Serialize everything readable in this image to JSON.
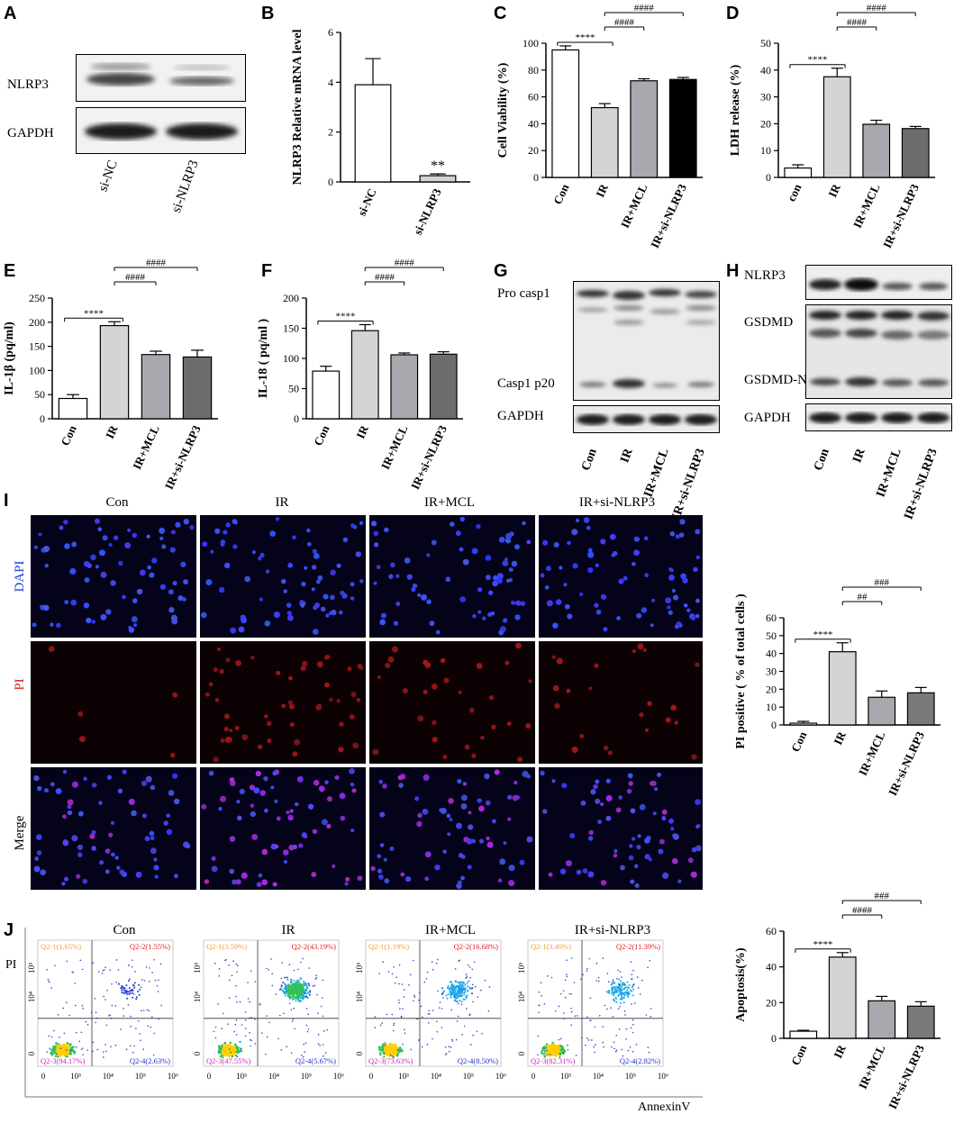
{
  "panels": {
    "A": {
      "label": "A",
      "rows": [
        "NLRP3",
        "GAPDH"
      ],
      "lanes": [
        "si-NC",
        "si-NLRP3"
      ]
    },
    "G": {
      "label": "G",
      "rows": [
        "Pro casp1",
        "Casp1 p20",
        "GAPDH"
      ],
      "lanes": [
        "Con",
        "IR",
        "IR+MCL",
        "IR+si-NLRP3"
      ]
    },
    "H": {
      "label": "H",
      "rows": [
        "NLRP3",
        "GSDMD",
        "GSDMD-N",
        "GAPDH"
      ],
      "lanes": [
        "Con",
        "IR",
        "IR+MCL",
        "IR+si-NLRP3"
      ]
    },
    "I": {
      "label": "I",
      "columns": [
        "Con",
        "IR",
        "IR+MCL",
        "IR+si-NLRP3"
      ],
      "rows": [
        "DAPI",
        "PI",
        "Merge"
      ],
      "row_colors": [
        "#1f3fd6",
        "#d42020",
        "#000000"
      ]
    },
    "J": {
      "label": "J",
      "columns": [
        "Con",
        "IR",
        "IR+MCL",
        "IR+si-NLRP3"
      ],
      "y_axis": "PI",
      "x_axis": "AnnexinV",
      "ticks": [
        "0",
        "10³",
        "10⁴",
        "10⁵",
        "10⁶"
      ],
      "quadrants": [
        [
          "Q2-1(1.65%)",
          "Q2-2(1.55%)",
          "Q2-3(94.17%)",
          "Q2-4(2.63%)"
        ],
        [
          "Q2-1(3.59%)",
          "Q2-2(43.19%)",
          "Q2-3(47.55%)",
          "Q2-4(5.67%)"
        ],
        [
          "Q2-1(1.19%)",
          "Q2-2(16.68%)",
          "Q2-3(73.63%)",
          "Q2-4(8.50%)"
        ],
        [
          "Q2-1(3.49%)",
          "Q2-2(11.39%)",
          "Q2-3(82.31%)",
          "Q2-4(2.82%)"
        ]
      ]
    }
  },
  "chart_data": [
    {
      "id": "B",
      "type": "bar",
      "label": "B",
      "categories": [
        "si-NC",
        "si-NLRP3"
      ],
      "values": [
        3.9,
        0.25
      ],
      "errors": [
        1.05,
        0.07
      ],
      "ylabel": "NLRP3 Relative mRNA level",
      "ylim": [
        0,
        6
      ],
      "yticks": [
        "0",
        "2",
        "4",
        "6"
      ],
      "fills": [
        "#ffffff",
        "#d4d4d4"
      ],
      "annotations": [
        {
          "text": "**",
          "at": 1
        }
      ]
    },
    {
      "id": "C",
      "type": "bar",
      "label": "C",
      "categories": [
        "Con",
        "IR",
        "IR+MCL",
        "IR+si-NLRP3"
      ],
      "values": [
        95,
        52,
        72,
        73
      ],
      "errors": [
        3,
        3,
        1.5,
        1.5
      ],
      "ylabel": "Cell  Viability (%)",
      "ylim": [
        0,
        100
      ],
      "yticks": [
        "0",
        "20",
        "40",
        "60",
        "80",
        "100"
      ],
      "fills": [
        "#ffffff",
        "#d4d4d4",
        "#a8a8ae",
        "#000000"
      ],
      "brackets": [
        {
          "from": 0,
          "to": 1,
          "text": "****"
        },
        {
          "from": 1,
          "to": 2,
          "text": "####"
        },
        {
          "from": 1,
          "to": 3,
          "text": "####"
        }
      ]
    },
    {
      "id": "D",
      "type": "bar",
      "label": "D",
      "categories": [
        "con",
        "IR",
        "IR+MCL",
        "IR+si-NLRP3"
      ],
      "values": [
        3.5,
        37.5,
        19.8,
        18.2
      ],
      "errors": [
        1.2,
        3.2,
        1.5,
        0.8
      ],
      "ylabel": "LDH release (%)",
      "ylim": [
        0,
        50
      ],
      "yticks": [
        "0",
        "10",
        "20",
        "30",
        "40",
        "50"
      ],
      "fills": [
        "#ffffff",
        "#d4d4d4",
        "#a8a8ae",
        "#6c6c6c"
      ],
      "brackets": [
        {
          "from": 0,
          "to": 1,
          "text": "****"
        },
        {
          "from": 1,
          "to": 2,
          "text": "####"
        },
        {
          "from": 1,
          "to": 3,
          "text": "####"
        }
      ]
    },
    {
      "id": "E",
      "type": "bar",
      "label": "E",
      "categories": [
        "Con",
        "IR",
        "IR+MCL",
        "IR+si-NLRP3"
      ],
      "values": [
        42,
        193,
        133,
        128
      ],
      "errors": [
        8,
        8,
        7,
        14
      ],
      "ylabel": "IL-1β (pq/ml)",
      "ylim": [
        0,
        250
      ],
      "yticks": [
        "0",
        "50",
        "100",
        "150",
        "200",
        "250"
      ],
      "fills": [
        "#ffffff",
        "#d4d4d4",
        "#a8a8ae",
        "#6c6c6c"
      ],
      "brackets": [
        {
          "from": 0,
          "to": 1,
          "text": "****"
        },
        {
          "from": 1,
          "to": 2,
          "text": "####"
        },
        {
          "from": 1,
          "to": 3,
          "text": "####"
        }
      ]
    },
    {
      "id": "F",
      "type": "bar",
      "label": "F",
      "categories": [
        "Con",
        "IR",
        "IR+MCL",
        "IR+si-NLRP3"
      ],
      "values": [
        79,
        146,
        106,
        107
      ],
      "errors": [
        8,
        10,
        3,
        4
      ],
      "ylabel": "IL-18 ( pq/ml )",
      "ylim": [
        0,
        200
      ],
      "yticks": [
        "0",
        "50",
        "100",
        "150",
        "200"
      ],
      "fills": [
        "#ffffff",
        "#d4d4d4",
        "#a8a8ae",
        "#6c6c6c"
      ],
      "brackets": [
        {
          "from": 0,
          "to": 1,
          "text": "****"
        },
        {
          "from": 1,
          "to": 2,
          "text": "####"
        },
        {
          "from": 1,
          "to": 3,
          "text": "####"
        }
      ]
    },
    {
      "id": "Ichart",
      "type": "bar",
      "categories": [
        "Con",
        "IR",
        "IR+MCL",
        "IR+si-NLRP3"
      ],
      "values": [
        1,
        41,
        15.5,
        18
      ],
      "errors": [
        1,
        5,
        3.5,
        3
      ],
      "ylabel": "PI positive ( % of total cells )",
      "ylim": [
        0,
        60
      ],
      "yticks": [
        "0",
        "10",
        "20",
        "30",
        "40",
        "50",
        "60"
      ],
      "fills": [
        "#ffffff",
        "#d4d4d4",
        "#a8a8ae",
        "#7a7a7a"
      ],
      "brackets": [
        {
          "from": 0,
          "to": 1,
          "text": "****"
        },
        {
          "from": 1,
          "to": 2,
          "text": "##"
        },
        {
          "from": 1,
          "to": 3,
          "text": "###"
        }
      ]
    },
    {
      "id": "Jchart",
      "type": "bar",
      "categories": [
        "Con",
        "IR",
        "IR+MCL",
        "IR+si-NLRP3"
      ],
      "values": [
        4,
        45.5,
        21,
        18
      ],
      "errors": [
        0.5,
        2.5,
        2.5,
        2.5
      ],
      "ylabel": "Apoptosis(%)",
      "ylim": [
        0,
        60
      ],
      "yticks": [
        "0",
        "20",
        "40",
        "60"
      ],
      "fills": [
        "#ffffff",
        "#d4d4d4",
        "#a8a8ae",
        "#7a7a7a"
      ],
      "brackets": [
        {
          "from": 0,
          "to": 1,
          "text": "****"
        },
        {
          "from": 1,
          "to": 2,
          "text": "####"
        },
        {
          "from": 1,
          "to": 3,
          "text": "###"
        }
      ]
    }
  ]
}
